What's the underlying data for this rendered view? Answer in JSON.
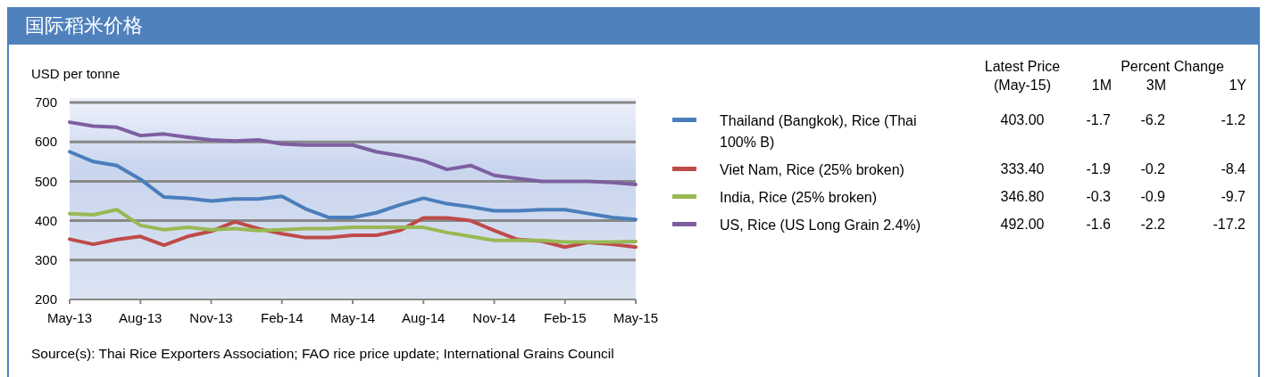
{
  "chart_data": {
    "type": "line",
    "title": "国际稻米价格",
    "ylabel": "USD per tonne",
    "categories": [
      "May-13",
      null,
      null,
      "Aug-13",
      null,
      null,
      "Nov-13",
      null,
      null,
      "Feb-14",
      null,
      null,
      "May-14",
      null,
      null,
      "Aug-14",
      null,
      null,
      "Nov-14",
      null,
      null,
      "Feb-15",
      null,
      null,
      "May-15"
    ],
    "series": [
      {
        "name": "Thailand (Bangkok), Rice (Thai 100% B)",
        "color": "#4a7ebb",
        "values": [
          575,
          550,
          540,
          505,
          460,
          457,
          450,
          455,
          455,
          462,
          430,
          408,
          408,
          420,
          440,
          457,
          443,
          435,
          425,
          425,
          428,
          428,
          418,
          408,
          403
        ]
      },
      {
        "name": "Viet Nam, Rice (25% broken)",
        "color": "#be4b48",
        "values": [
          353,
          340,
          352,
          360,
          338,
          360,
          373,
          397,
          380,
          367,
          357,
          357,
          363,
          363,
          375,
          407,
          407,
          400,
          375,
          352,
          348,
          333,
          345,
          340,
          333
        ]
      },
      {
        "name": "India, Rice (25% broken)",
        "color": "#98b954",
        "values": [
          418,
          415,
          428,
          388,
          377,
          383,
          377,
          380,
          375,
          377,
          380,
          380,
          383,
          383,
          383,
          383,
          370,
          360,
          350,
          350,
          350,
          346,
          346,
          346,
          347
        ]
      },
      {
        "name": "US, Rice (US Long Grain 2.4%)",
        "color": "#7d5fa0",
        "values": [
          650,
          640,
          637,
          616,
          620,
          612,
          605,
          602,
          605,
          595,
          592,
          592,
          592,
          575,
          565,
          552,
          530,
          540,
          515,
          507,
          500,
          500,
          500,
          497,
          492
        ]
      }
    ],
    "ylim": [
      200,
      700
    ],
    "yticks": [
      200,
      300,
      400,
      500,
      600,
      700
    ],
    "grid": "y",
    "legend": "right",
    "annotations": [
      "Source(s): Thai Rice Exporters Association; FAO rice price update; International Grains Council",
      "Latest Price (May-15)",
      "Percent Change",
      "1M",
      "3M",
      "1Y",
      "403.00",
      "-1.7",
      "-6.2",
      "-1.2",
      "333.40",
      "-1.9",
      "-0.2",
      "-8.4",
      "346.80",
      "-0.3",
      "-0.9",
      "-9.7",
      "492.00",
      "-1.6",
      "-2.2",
      "-17.2"
    ]
  }
}
